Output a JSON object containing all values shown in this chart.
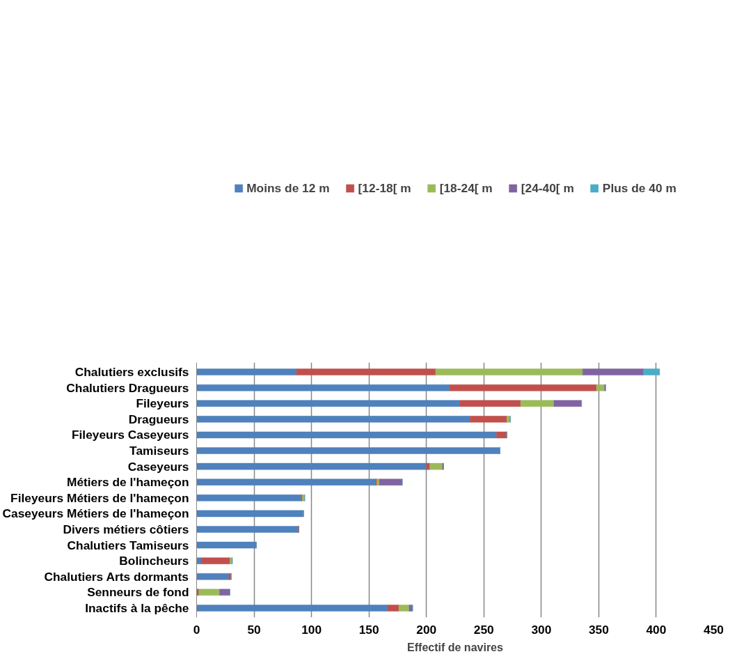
{
  "chart_data": {
    "type": "bar",
    "orientation": "horizontal",
    "stacked": true,
    "xlabel": "Effectif de navires",
    "categories": [
      "Chalutiers exclusifs",
      "Chalutiers Dragueurs",
      "Fileyeurs",
      "Dragueurs",
      "Fileyeurs Caseyeurs",
      "Tamiseurs",
      "Caseyeurs",
      "Métiers de l'hameçon",
      "Fileyeurs Métiers de l'hameçon",
      "Caseyeurs Métiers de l'hameçon",
      "Divers métiers côtiers",
      "Chalutiers Tamiseurs",
      "Bolincheurs",
      "Chalutiers Arts dormants",
      "Senneurs de fond",
      "Inactifs à la pêche"
    ],
    "series": [
      {
        "name": "Moins de 12 m",
        "color": "#4f81bd",
        "values": [
          87,
          220,
          229,
          238,
          261,
          264,
          200,
          156,
          91,
          93,
          88,
          52,
          4,
          28,
          0,
          166
        ]
      },
      {
        "name": "[12-18[ m",
        "color": "#c0504d",
        "values": [
          121,
          128,
          53,
          32,
          9,
          0,
          3,
          1,
          1,
          0,
          1,
          0,
          25,
          2,
          2,
          10
        ]
      },
      {
        "name": "[18-24[ m",
        "color": "#9bbb59",
        "values": [
          128,
          7,
          29,
          3,
          0,
          0,
          11,
          2,
          2,
          0,
          0,
          0,
          2,
          0,
          18,
          9
        ]
      },
      {
        "name": "[24-40[ m",
        "color": "#8064a2",
        "values": [
          53,
          1,
          24,
          0,
          0,
          0,
          1,
          20,
          0,
          0,
          0,
          0,
          0,
          0,
          9,
          3
        ]
      },
      {
        "name": "Plus de 40 m",
        "color": "#4bacc6",
        "values": [
          14,
          0,
          0,
          0,
          0,
          0,
          0,
          0,
          0,
          0,
          0,
          0,
          0,
          0,
          0,
          0
        ]
      }
    ],
    "xlim": [
      0,
      450
    ],
    "xticks": [
      0,
      50,
      100,
      150,
      200,
      250,
      300,
      350,
      400,
      450
    ],
    "grid": "x",
    "legend": "top"
  }
}
